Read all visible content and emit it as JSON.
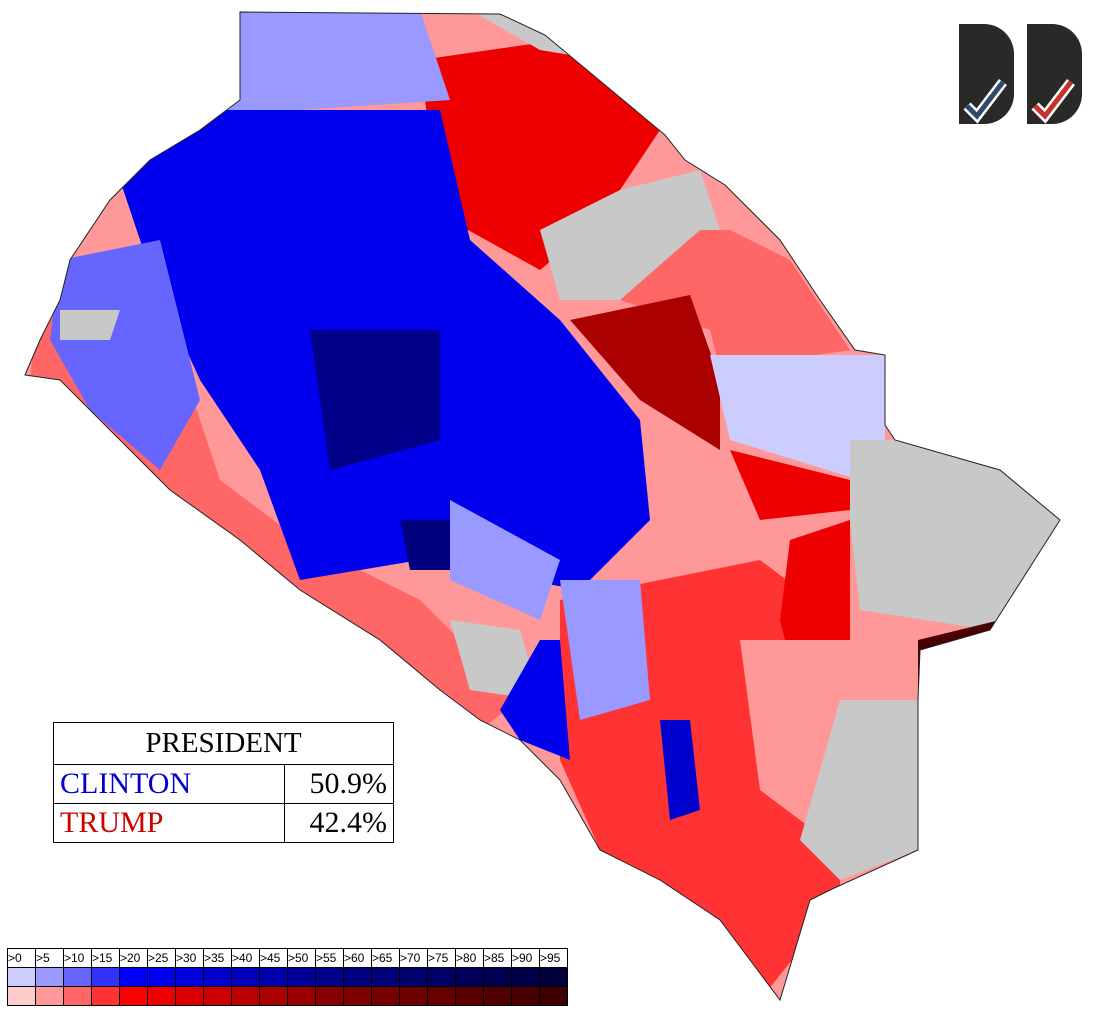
{
  "results": {
    "title": "PRESIDENT",
    "candidates": [
      {
        "name": "CLINTON",
        "pct": "50.9%",
        "color": "#0000cc"
      },
      {
        "name": "TRUMP",
        "pct": "42.4%",
        "color": "#cc0000"
      }
    ]
  },
  "legend": {
    "thresholds": [
      ">0",
      ">5",
      ">10",
      ">15",
      ">20",
      ">25",
      ">30",
      ">35",
      ">40",
      ">45",
      ">50",
      ">55",
      ">60",
      ">65",
      ">70",
      ">75",
      ">80",
      ">85",
      ">90",
      ">95"
    ],
    "blue": [
      "#ccccff",
      "#9999ff",
      "#6666ff",
      "#3333ff",
      "#0000ff",
      "#0000ee",
      "#0000dd",
      "#0000cc",
      "#0000bb",
      "#0000aa",
      "#000099",
      "#000088",
      "#00007f",
      "#000077",
      "#00006d",
      "#000066",
      "#00005a",
      "#000050",
      "#000048",
      "#00003d"
    ],
    "red": [
      "#ffcccc",
      "#ff9999",
      "#ff6666",
      "#ff3333",
      "#ff0000",
      "#ee0000",
      "#dd0000",
      "#cc0000",
      "#bb0000",
      "#aa0000",
      "#990000",
      "#880000",
      "#7f0000",
      "#770000",
      "#6d0000",
      "#660000",
      "#5a0000",
      "#500000",
      "#480000",
      "#3d0000"
    ]
  },
  "map": {
    "no_data_color": "#c8c8c8"
  },
  "logos": [
    {
      "check_color": "#2e4a6b"
    },
    {
      "check_color": "#c8302a"
    }
  ]
}
